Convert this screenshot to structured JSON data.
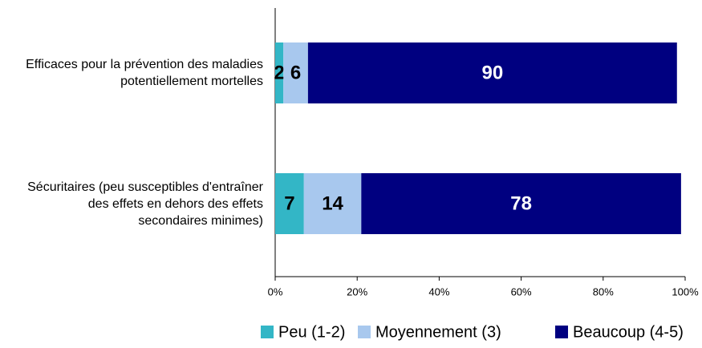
{
  "chart_data": {
    "type": "stacked_bar_horizontal",
    "categories": [
      "Efficaces pour la prévention des maladies potentiellement mortelles",
      "Sécuritaires (peu susceptibles d'entraîner des effets en dehors des effets secondaires minimes)"
    ],
    "series": [
      {
        "name": "Peu (1-2)",
        "color": "#33b6c6",
        "values": [
          2,
          7
        ]
      },
      {
        "name": "Moyennement (3)",
        "color": "#a8c8ee",
        "values": [
          6,
          14
        ]
      },
      {
        "name": "Beaucoup (4-5)",
        "color": "#000080",
        "values": [
          90,
          78
        ]
      }
    ],
    "xlim": [
      0,
      100
    ],
    "xticks": [
      {
        "value": 0,
        "label": "0%"
      },
      {
        "value": 20,
        "label": "20%"
      },
      {
        "value": 40,
        "label": "40%"
      },
      {
        "value": 60,
        "label": "60%"
      },
      {
        "value": 80,
        "label": "80%"
      },
      {
        "value": 100,
        "label": "100%"
      }
    ],
    "legend": "bottom"
  }
}
